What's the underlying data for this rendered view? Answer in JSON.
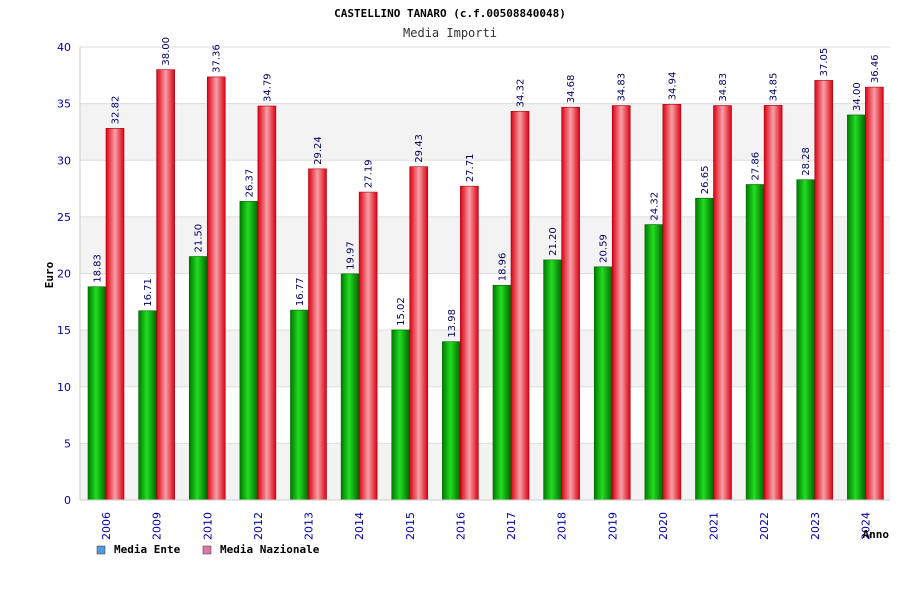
{
  "chart_data": {
    "type": "bar",
    "title": "CASTELLINO TANARO (c.f.00508840048)",
    "subtitle": "Media Importi",
    "xlabel": "Anno",
    "ylabel": "Euro",
    "ylim": [
      0,
      40
    ],
    "yticks": [
      0,
      5,
      10,
      15,
      20,
      25,
      30,
      35,
      40
    ],
    "categories": [
      "2006",
      "2009",
      "2010",
      "2012",
      "2013",
      "2014",
      "2015",
      "2016",
      "2017",
      "2018",
      "2019",
      "2020",
      "2021",
      "2022",
      "2023",
      "2024"
    ],
    "series": [
      {
        "name": "Media Ente",
        "color": "#00aa00",
        "values": [
          18.83,
          16.71,
          21.5,
          26.37,
          16.77,
          19.97,
          15.02,
          13.98,
          18.96,
          21.2,
          20.59,
          24.32,
          26.65,
          27.86,
          28.28,
          34.0
        ],
        "labels": [
          "18.83",
          "16.71",
          "21.50",
          "26.37",
          "16.77",
          "19.97",
          "15.02",
          "13.98",
          "18.96",
          "21.20",
          "20.59",
          "24.32",
          "26.65",
          "27.86",
          "28.28",
          "34.00"
        ]
      },
      {
        "name": "Media Nazionale",
        "color": "#ee1122",
        "values": [
          32.82,
          38.0,
          37.36,
          34.79,
          29.24,
          27.19,
          29.43,
          27.71,
          34.32,
          34.68,
          34.83,
          34.94,
          34.83,
          34.85,
          37.05,
          36.46
        ],
        "labels": [
          "32.82",
          "38.00",
          "37.36",
          "34.79",
          "29.24",
          "27.19",
          "29.43",
          "27.71",
          "34.32",
          "34.68",
          "34.83",
          "34.94",
          "34.83",
          "34.85",
          "37.05",
          "36.46"
        ]
      }
    ],
    "grid": true,
    "legend_position": "bottom-left",
    "legend_colors": [
      "#5599dd",
      "#dd77aa"
    ]
  }
}
